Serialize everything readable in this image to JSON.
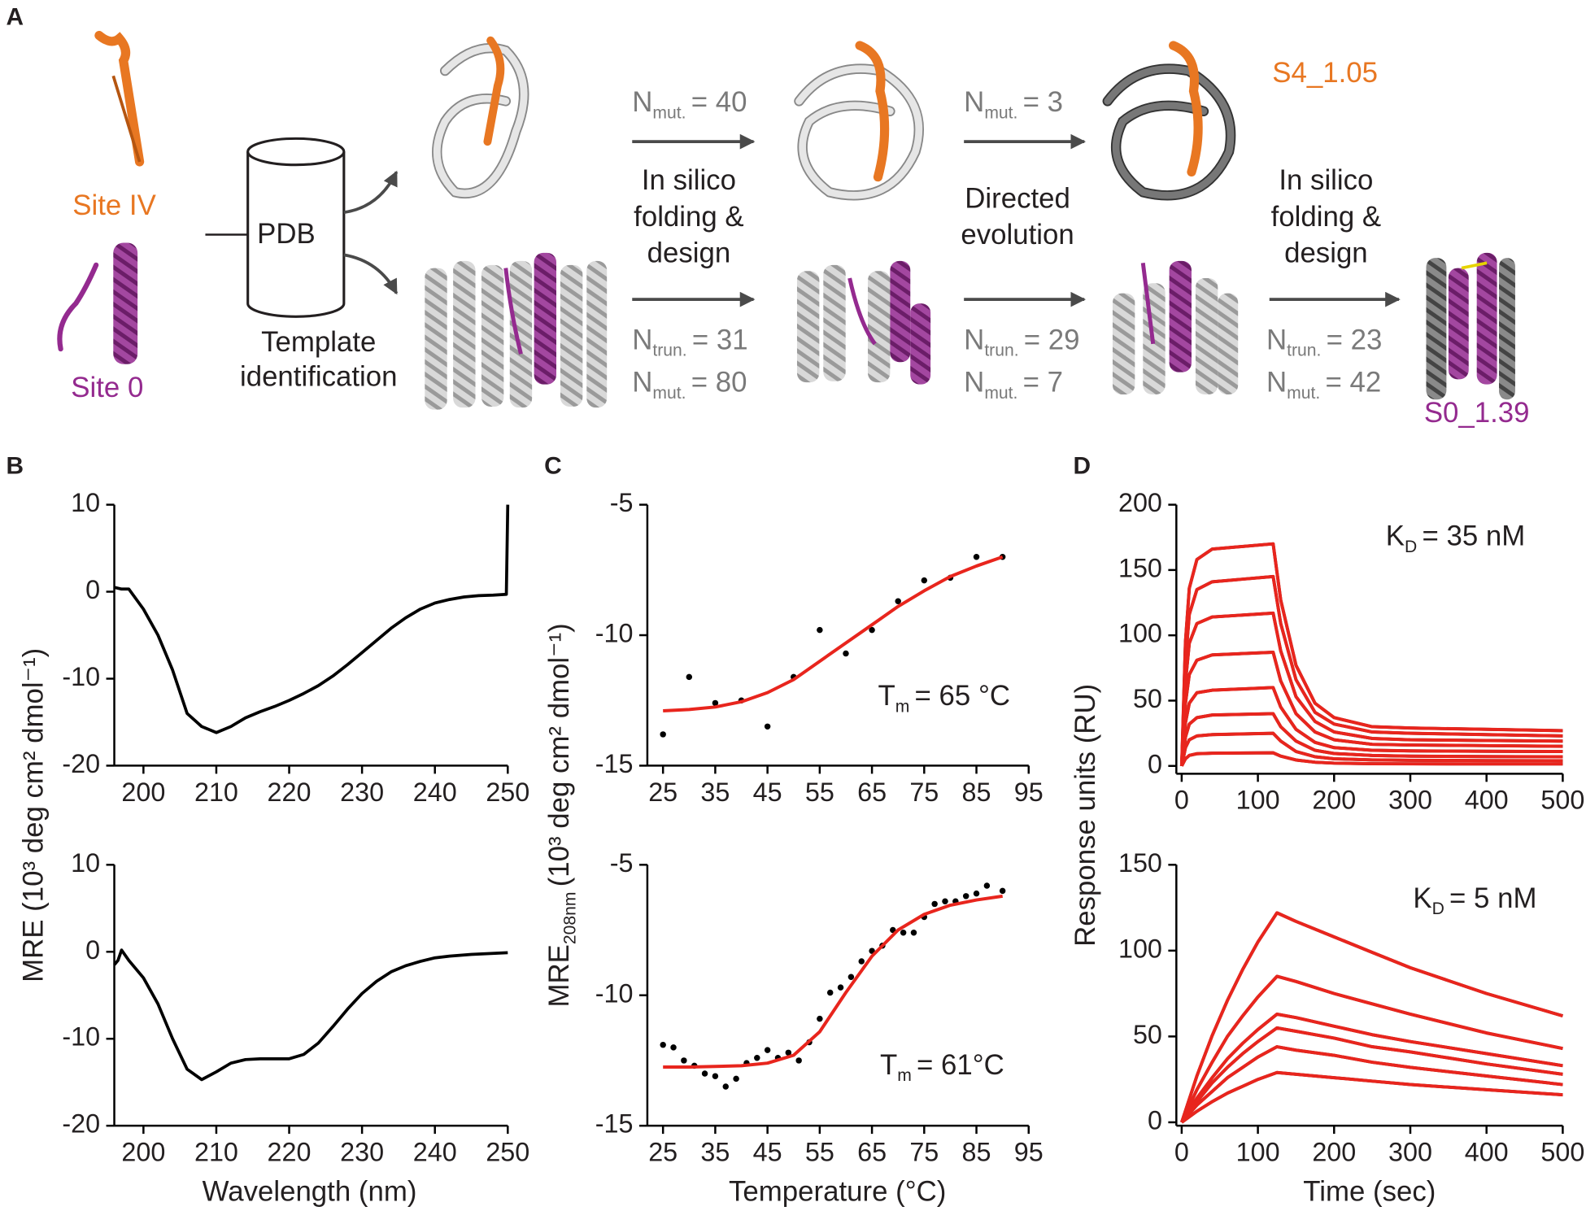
{
  "panel_labels": [
    "A",
    "B",
    "C",
    "D"
  ],
  "diagram": {
    "site_iv": "Site IV",
    "site_0": "Site 0",
    "database": "PDB",
    "template_step": [
      "Template",
      "identification"
    ],
    "steps": [
      {
        "name": [
          "In silico",
          "folding &",
          "design"
        ],
        "top": [
          {
            "base": "N",
            "sub": "mut.",
            "rest": "= 40"
          }
        ],
        "bottom": [
          {
            "base": "N",
            "sub": "trun.",
            "rest": "= 31"
          },
          {
            "base": "N",
            "sub": "mut.",
            "rest": "= 80"
          }
        ]
      },
      {
        "name": [
          "Directed",
          "evolution"
        ],
        "top": [
          {
            "base": "N",
            "sub": "mut.",
            "rest": "= 3"
          }
        ],
        "bottom": [
          {
            "base": "N",
            "sub": "trun.",
            "rest": "= 29"
          },
          {
            "base": "N",
            "sub": "mut.",
            "rest": "= 7"
          }
        ]
      },
      {
        "name": [
          "In silico",
          "folding &",
          "design"
        ],
        "bottom": [
          {
            "base": "N",
            "sub": "trun.",
            "rest": "= 23"
          },
          {
            "base": "N",
            "sub": "mut.",
            "rest": "= 42"
          }
        ]
      }
    ],
    "results": [
      "S4_1.05",
      "S0_1.39"
    ]
  },
  "chart_data": [
    {
      "type": "line",
      "xlim": [
        196,
        250
      ],
      "ylim": [
        -20,
        10
      ],
      "xticks": [
        200,
        210,
        220,
        230,
        240,
        250
      ],
      "yticks": [
        -20,
        -10,
        0,
        10
      ],
      "ylabel": "MRE (10³ deg cm² dmol⁻¹)",
      "series": [
        {
          "color": "#000000",
          "x": [
            196,
            197,
            198,
            200,
            202,
            204,
            206,
            208,
            210,
            212,
            214,
            216,
            218,
            220,
            222,
            224,
            226,
            228,
            230,
            232,
            234,
            236,
            238,
            240,
            242,
            244,
            246,
            248,
            249.8,
            250
          ],
          "values": [
            0.5,
            0.3,
            0.3,
            -2,
            -5,
            -9,
            -14,
            -15.5,
            -16.2,
            -15.5,
            -14.5,
            -13.8,
            -13.2,
            -12.5,
            -11.7,
            -10.8,
            -9.7,
            -8.4,
            -7,
            -5.6,
            -4.2,
            -3,
            -2,
            -1.3,
            -0.9,
            -0.6,
            -0.45,
            -0.4,
            -0.3,
            10
          ]
        }
      ]
    },
    {
      "type": "line",
      "xlim": [
        196,
        250
      ],
      "ylim": [
        -20,
        10
      ],
      "xticks": [
        200,
        210,
        220,
        230,
        240,
        250
      ],
      "yticks": [
        -20,
        -10,
        0,
        10
      ],
      "xlabel": "Wavelength (nm)",
      "series": [
        {
          "color": "#000000",
          "x": [
            196,
            196.5,
            197,
            198,
            200,
            202,
            204,
            206,
            208,
            210,
            212,
            214,
            216,
            218,
            220,
            222,
            224,
            226,
            228,
            230,
            232,
            234,
            236,
            238,
            240,
            242,
            245,
            250
          ],
          "values": [
            -1.5,
            -1,
            0.2,
            -1,
            -3,
            -6,
            -10,
            -13.5,
            -14.7,
            -13.8,
            -12.8,
            -12.4,
            -12.3,
            -12.3,
            -12.3,
            -11.8,
            -10.5,
            -8.6,
            -6.6,
            -4.8,
            -3.4,
            -2.3,
            -1.6,
            -1.1,
            -0.7,
            -0.5,
            -0.3,
            -0.1
          ]
        }
      ]
    },
    {
      "type": "scatter",
      "xlim": [
        22,
        95
      ],
      "ylim": [
        -15,
        -5
      ],
      "xticks": [
        25,
        35,
        45,
        55,
        65,
        75,
        85,
        95
      ],
      "yticks": [
        -15,
        -10,
        -5
      ],
      "ylabel": {
        "base": "MRE",
        "sub": "208nm",
        "rest": "(10³ deg cm² dmol⁻¹)"
      },
      "annotation": {
        "base": "T",
        "sub": "m",
        "rest": "= 65 °C"
      },
      "series": [
        {
          "color": "#000000",
          "style": "points",
          "x": [
            25,
            30,
            35,
            40,
            45,
            50,
            55,
            60,
            65,
            70,
            75,
            80,
            85,
            90
          ],
          "values": [
            -13.8,
            -11.6,
            -12.6,
            -12.5,
            -13.5,
            -11.6,
            -9.8,
            -10.7,
            -9.8,
            -8.7,
            -7.9,
            -7.8,
            -7.0,
            -7.0
          ]
        },
        {
          "color": "#e8251d",
          "style": "line",
          "x": [
            25,
            30,
            35,
            40,
            45,
            50,
            55,
            60,
            65,
            70,
            75,
            80,
            85,
            90
          ],
          "values": [
            -12.9,
            -12.85,
            -12.75,
            -12.55,
            -12.2,
            -11.7,
            -11.0,
            -10.3,
            -9.6,
            -8.9,
            -8.3,
            -7.75,
            -7.35,
            -7.0
          ]
        }
      ]
    },
    {
      "type": "scatter",
      "xlim": [
        22,
        95
      ],
      "ylim": [
        -15,
        -5
      ],
      "xticks": [
        25,
        35,
        45,
        55,
        65,
        75,
        85,
        95
      ],
      "yticks": [
        -15,
        -10,
        -5
      ],
      "xlabel": "Temperature (°C)",
      "annotation": {
        "base": "T",
        "sub": "m",
        "rest": "= 61°C"
      },
      "series": [
        {
          "color": "#000000",
          "style": "points",
          "x": [
            25,
            27,
            29,
            31,
            33,
            35,
            37,
            39,
            41,
            43,
            45,
            47,
            49,
            51,
            53,
            55,
            57,
            59,
            61,
            63,
            65,
            67,
            69,
            71,
            73,
            75,
            77,
            79,
            81,
            83,
            85,
            87,
            90
          ],
          "values": [
            -11.9,
            -12.0,
            -12.5,
            -12.7,
            -13.0,
            -13.1,
            -13.5,
            -13.2,
            -12.6,
            -12.4,
            -12.1,
            -12.4,
            -12.2,
            -12.5,
            -11.8,
            -10.9,
            -9.9,
            -9.7,
            -9.3,
            -8.7,
            -8.3,
            -8.1,
            -7.5,
            -7.6,
            -7.6,
            -7.0,
            -6.5,
            -6.4,
            -6.4,
            -6.2,
            -6.1,
            -5.8,
            -6.0
          ]
        },
        {
          "color": "#e8251d",
          "style": "line",
          "x": [
            25,
            30,
            35,
            40,
            45,
            50,
            55,
            60,
            65,
            70,
            75,
            80,
            85,
            90
          ],
          "values": [
            -12.75,
            -12.75,
            -12.73,
            -12.7,
            -12.6,
            -12.3,
            -11.4,
            -9.9,
            -8.5,
            -7.5,
            -6.9,
            -6.55,
            -6.35,
            -6.2
          ]
        }
      ]
    },
    {
      "type": "line",
      "xlim": [
        -7,
        500
      ],
      "ylim": [
        -6,
        200
      ],
      "xticks": [
        0,
        100,
        200,
        300,
        400,
        500
      ],
      "yticks": [
        0,
        50,
        100,
        150,
        200
      ],
      "ylabel": "Response units (RU)",
      "annotation": {
        "base": "K",
        "sub": "D",
        "rest": "= 35 nM"
      },
      "x": [
        0,
        5,
        10,
        20,
        40,
        120,
        130,
        150,
        175,
        200,
        250,
        300,
        400,
        500
      ],
      "series": [
        {
          "color": "#000000",
          "values": [
            0,
            95,
            136,
            158,
            166,
            170,
            127,
            77,
            48,
            37,
            30,
            29,
            28,
            27
          ]
        },
        {
          "color": "#000000",
          "values": [
            0,
            80,
            116,
            135,
            141,
            145,
            109,
            66,
            41,
            32,
            26,
            25,
            24,
            23
          ]
        },
        {
          "color": "#000000",
          "values": [
            0,
            64,
            94,
            109,
            114,
            117,
            88,
            53,
            34,
            26,
            21,
            20,
            19.5,
            19
          ]
        },
        {
          "color": "#000000",
          "values": [
            0,
            48,
            70,
            81,
            85,
            87,
            65,
            40,
            26,
            20,
            16.5,
            16,
            15.5,
            15
          ]
        },
        {
          "color": "#000000",
          "values": [
            0,
            33,
            48,
            56,
            58,
            60,
            45,
            28,
            18,
            14,
            12,
            11.5,
            11.2,
            11
          ]
        },
        {
          "color": "#000000",
          "values": [
            0,
            22,
            32,
            37,
            39,
            40,
            30,
            19,
            12,
            9.5,
            8,
            7.5,
            7.2,
            7
          ]
        },
        {
          "color": "#000000",
          "values": [
            0,
            14,
            20,
            23,
            24,
            25,
            19,
            11,
            7,
            5.5,
            4.6,
            4.3,
            4.1,
            4
          ]
        },
        {
          "color": "#000000",
          "values": [
            0,
            5.5,
            8,
            9.3,
            9.7,
            10,
            7.5,
            4.5,
            2.8,
            2.1,
            1.7,
            1.6,
            1.5,
            1.5
          ]
        },
        {
          "color": "#e8251d",
          "values": [
            0,
            95,
            136,
            158,
            166,
            170,
            127,
            77,
            48,
            37,
            30,
            29,
            28,
            27
          ]
        },
        {
          "color": "#e8251d",
          "values": [
            0,
            80,
            116,
            135,
            141,
            145,
            109,
            66,
            41,
            32,
            26,
            25,
            24,
            23
          ]
        },
        {
          "color": "#e8251d",
          "values": [
            0,
            64,
            94,
            109,
            114,
            117,
            88,
            53,
            34,
            26,
            21,
            20,
            19.5,
            19
          ]
        },
        {
          "color": "#e8251d",
          "values": [
            0,
            48,
            70,
            81,
            85,
            87,
            65,
            40,
            26,
            20,
            16.5,
            16,
            15.5,
            15
          ]
        },
        {
          "color": "#e8251d",
          "values": [
            0,
            33,
            48,
            56,
            58,
            60,
            45,
            28,
            18,
            14,
            12,
            11.5,
            11.2,
            11
          ]
        },
        {
          "color": "#e8251d",
          "values": [
            0,
            22,
            32,
            37,
            39,
            40,
            30,
            19,
            12,
            9.5,
            8,
            7.5,
            7.2,
            7
          ]
        },
        {
          "color": "#e8251d",
          "values": [
            0,
            14,
            20,
            23,
            24,
            25,
            19,
            11,
            7,
            5.5,
            4.6,
            4.3,
            4.1,
            4
          ]
        },
        {
          "color": "#e8251d",
          "values": [
            0,
            5.5,
            8,
            9.3,
            9.7,
            10,
            7.5,
            4.5,
            2.8,
            2.1,
            1.7,
            1.6,
            1.5,
            1.5
          ]
        }
      ]
    },
    {
      "type": "line",
      "xlim": [
        -7,
        500
      ],
      "ylim": [
        -2,
        150
      ],
      "xticks": [
        0,
        100,
        200,
        300,
        400,
        500
      ],
      "yticks": [
        0,
        50,
        100,
        150
      ],
      "xlabel": "Time (sec)",
      "annotation": {
        "base": "K",
        "sub": "D",
        "rest": "= 5 nM"
      },
      "x": [
        0,
        20,
        40,
        60,
        80,
        100,
        125,
        150,
        200,
        250,
        300,
        400,
        500
      ],
      "series": [
        {
          "color": "#000000",
          "values": [
            0,
            27,
            50.5,
            71,
            89,
            105,
            122,
            117,
            108,
            99,
            90,
            75,
            62
          ]
        },
        {
          "color": "#000000",
          "values": [
            0,
            19,
            35,
            50,
            62,
            73,
            85,
            82,
            75,
            69,
            63,
            52,
            43
          ]
        },
        {
          "color": "#000000",
          "values": [
            0,
            14,
            26,
            37,
            46,
            54,
            63,
            61,
            56,
            51,
            47,
            40,
            33
          ]
        },
        {
          "color": "#000000",
          "values": [
            0,
            12,
            23,
            32,
            40,
            47,
            55,
            53,
            49,
            44,
            41,
            34,
            28
          ]
        },
        {
          "color": "#000000",
          "values": [
            0,
            10,
            18,
            26,
            32,
            38,
            44,
            42,
            39,
            35,
            32,
            27,
            22
          ]
        },
        {
          "color": "#000000",
          "values": [
            0,
            6.4,
            12,
            17,
            21,
            25,
            29,
            28,
            26,
            24,
            22,
            19,
            16
          ]
        },
        {
          "color": "#e8251d",
          "values": [
            0,
            27,
            50.5,
            71,
            89,
            105,
            122,
            117,
            108,
            99,
            90,
            75,
            62
          ]
        },
        {
          "color": "#e8251d",
          "values": [
            0,
            19,
            35,
            50,
            62,
            73,
            85,
            82,
            75,
            69,
            63,
            52,
            43
          ]
        },
        {
          "color": "#e8251d",
          "values": [
            0,
            14,
            26,
            37,
            46,
            54,
            63,
            61,
            56,
            51,
            47,
            40,
            33
          ]
        },
        {
          "color": "#e8251d",
          "values": [
            0,
            12,
            23,
            32,
            40,
            47,
            55,
            53,
            49,
            44,
            41,
            34,
            28
          ]
        },
        {
          "color": "#e8251d",
          "values": [
            0,
            10,
            18,
            26,
            32,
            38,
            44,
            42,
            39,
            35,
            32,
            27,
            22
          ]
        },
        {
          "color": "#e8251d",
          "values": [
            0,
            6.4,
            12,
            17,
            21,
            25,
            29,
            28,
            26,
            24,
            22,
            19,
            16
          ]
        }
      ]
    }
  ]
}
